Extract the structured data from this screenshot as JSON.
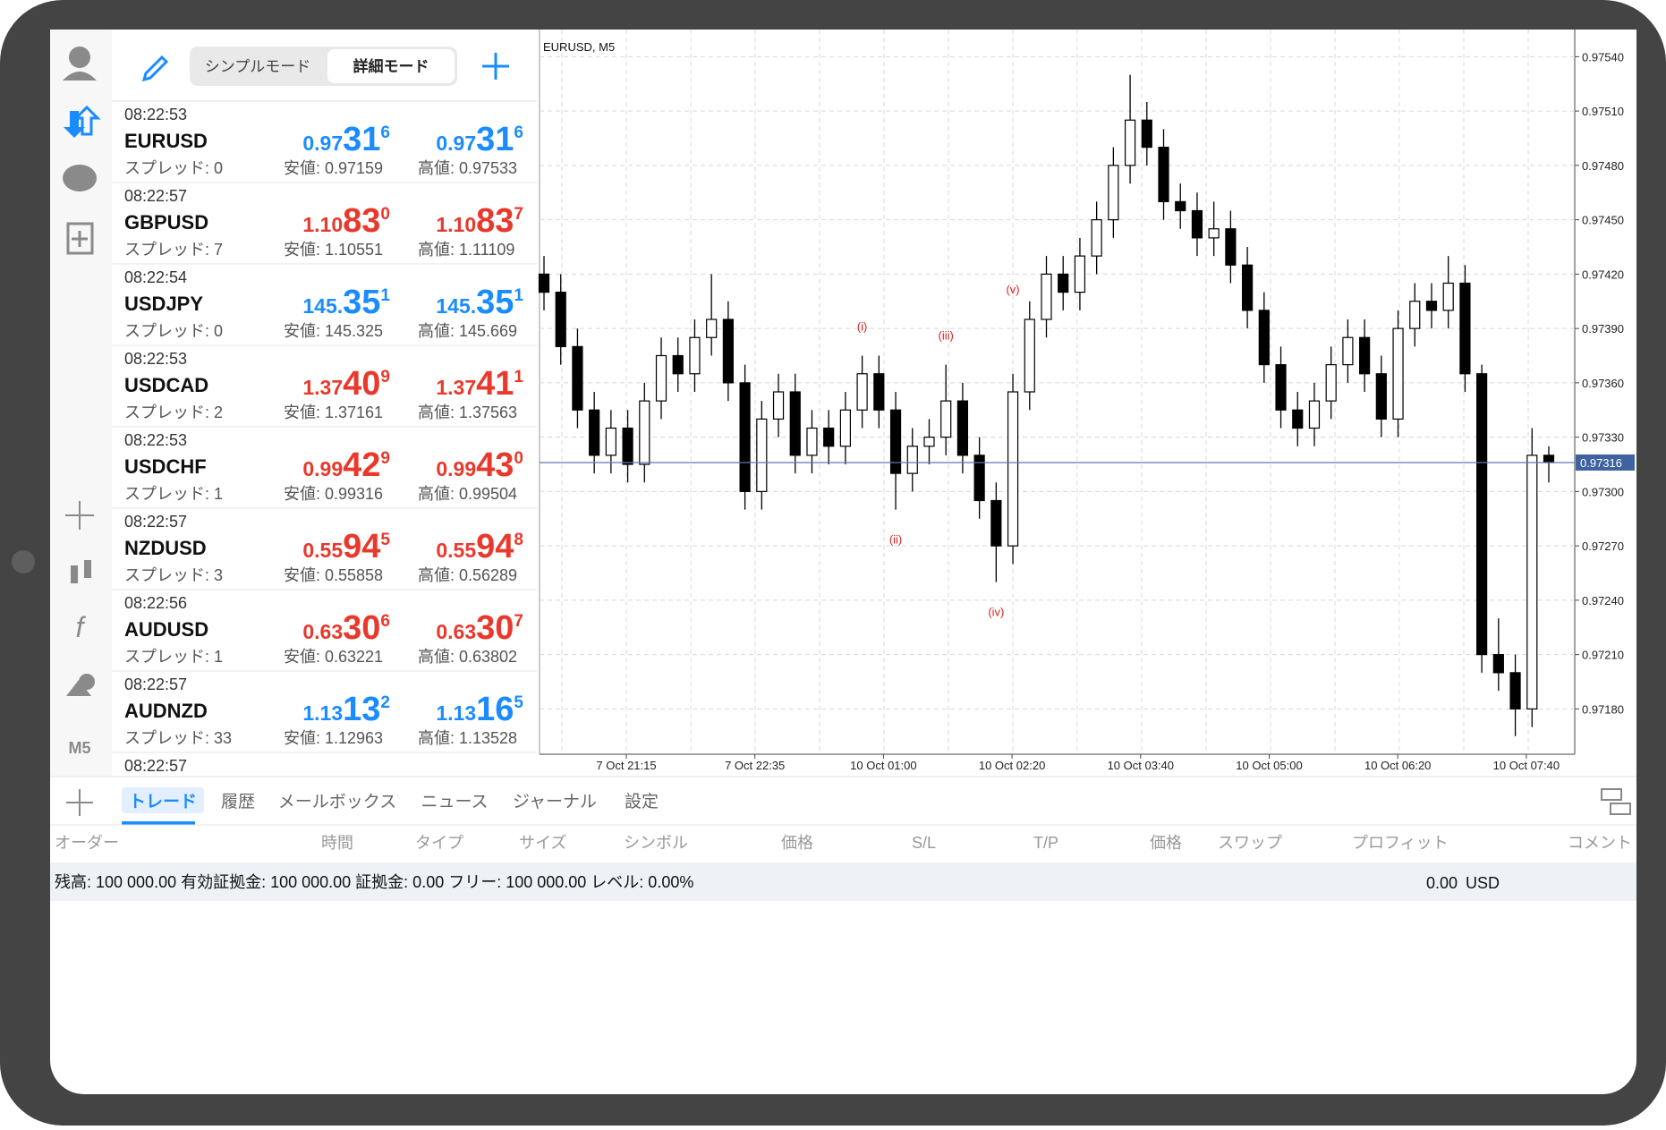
{
  "toolbar": {
    "modes": [
      "シンプルモード",
      "詳細モード"
    ]
  },
  "sidebar": {
    "timeframe": "M5"
  },
  "quotes": [
    {
      "time": "08:22:53",
      "symbol": "EURUSD",
      "spread": "スプレッド: 0",
      "bid": [
        "0.97",
        "31",
        "6"
      ],
      "ask": [
        "0.97",
        "31",
        "6"
      ],
      "low": "安値: 0.97159",
      "high": "高値: 0.97533",
      "color": "#1a8cff"
    },
    {
      "time": "08:22:57",
      "symbol": "GBPUSD",
      "spread": "スプレッド: 7",
      "bid": [
        "1.10",
        "83",
        "0"
      ],
      "ask": [
        "1.10",
        "83",
        "7"
      ],
      "low": "安値: 1.10551",
      "high": "高値: 1.11109",
      "color": "#e8392c"
    },
    {
      "time": "08:22:54",
      "symbol": "USDJPY",
      "spread": "スプレッド: 0",
      "bid": [
        "145.",
        "35",
        "1"
      ],
      "ask": [
        "145.",
        "35",
        "1"
      ],
      "low": "安値: 145.325",
      "high": "高値: 145.669",
      "color": "#1a8cff"
    },
    {
      "time": "08:22:53",
      "symbol": "USDCAD",
      "spread": "スプレッド: 2",
      "bid": [
        "1.37",
        "40",
        "9"
      ],
      "ask": [
        "1.37",
        "41",
        "1"
      ],
      "low": "安値: 1.37161",
      "high": "高値: 1.37563",
      "color": "#e8392c"
    },
    {
      "time": "08:22:53",
      "symbol": "USDCHF",
      "spread": "スプレッド: 1",
      "bid": [
        "0.99",
        "42",
        "9"
      ],
      "ask": [
        "0.99",
        "43",
        "0"
      ],
      "low": "安値: 0.99316",
      "high": "高値: 0.99504",
      "color": "#e8392c"
    },
    {
      "time": "08:22:57",
      "symbol": "NZDUSD",
      "spread": "スプレッド: 3",
      "bid": [
        "0.55",
        "94",
        "5"
      ],
      "ask": [
        "0.55",
        "94",
        "8"
      ],
      "low": "安値: 0.55858",
      "high": "高値: 0.56289",
      "color": "#e8392c"
    },
    {
      "time": "08:22:56",
      "symbol": "AUDUSD",
      "spread": "スプレッド: 1",
      "bid": [
        "0.63",
        "30",
        "6"
      ],
      "ask": [
        "0.63",
        "30",
        "7"
      ],
      "low": "安値: 0.63221",
      "high": "高値: 0.63802",
      "color": "#e8392c"
    },
    {
      "time": "08:22:57",
      "symbol": "AUDNZD",
      "spread": "スプレッド: 33",
      "bid": [
        "1.13",
        "13",
        "2"
      ],
      "ask": [
        "1.13",
        "16",
        "5"
      ],
      "low": "安値: 1.12963",
      "high": "高値: 1.13528",
      "color": "#1a8cff"
    },
    {
      "time": "08:22:57"
    }
  ],
  "chart": {
    "title": "EURUSD, M5",
    "candles": {
      "open": [
        0.9742,
        0.9741,
        0.9738,
        0.97345,
        0.9732,
        0.97335,
        0.97315,
        0.9735,
        0.97375,
        0.97365,
        0.97385,
        0.97395,
        0.9736,
        0.973,
        0.9734,
        0.97355,
        0.9732,
        0.97335,
        0.97325,
        0.97345,
        0.97365,
        0.97345,
        0.9731,
        0.97325,
        0.9733,
        0.9735,
        0.9732,
        0.97295,
        0.9727,
        0.97355,
        0.97395,
        0.9742,
        0.9741,
        0.9743,
        0.9745,
        0.9748,
        0.97505,
        0.9749,
        0.9746,
        0.97455,
        0.9744,
        0.97445,
        0.97425,
        0.974,
        0.9737,
        0.97345,
        0.97335,
        0.9735,
        0.9737,
        0.97385,
        0.97365,
        0.9734,
        0.9739,
        0.97405,
        0.974,
        0.97415,
        0.97365,
        0.9721,
        0.972,
        0.9718,
        0.9732
      ],
      "high": [
        0.9743,
        0.9742,
        0.9739,
        0.97355,
        0.97345,
        0.97345,
        0.9736,
        0.97385,
        0.97385,
        0.97395,
        0.9742,
        0.97405,
        0.9737,
        0.9735,
        0.97365,
        0.97365,
        0.97345,
        0.97345,
        0.97355,
        0.97375,
        0.97375,
        0.97355,
        0.97335,
        0.9734,
        0.9737,
        0.9736,
        0.9733,
        0.97305,
        0.97365,
        0.97405,
        0.9743,
        0.9743,
        0.9744,
        0.9746,
        0.9749,
        0.9753,
        0.97515,
        0.975,
        0.9747,
        0.97465,
        0.9746,
        0.97455,
        0.97435,
        0.9741,
        0.9738,
        0.97355,
        0.9736,
        0.9738,
        0.97395,
        0.97395,
        0.97375,
        0.974,
        0.97415,
        0.97415,
        0.9743,
        0.97425,
        0.9737,
        0.9723,
        0.9721,
        0.97335,
        0.97325
      ],
      "low": [
        0.974,
        0.9737,
        0.97335,
        0.9731,
        0.9731,
        0.97305,
        0.97305,
        0.9734,
        0.97355,
        0.97355,
        0.97375,
        0.9735,
        0.9729,
        0.9729,
        0.9733,
        0.9731,
        0.9731,
        0.97315,
        0.97315,
        0.97335,
        0.97335,
        0.9729,
        0.973,
        0.97315,
        0.9732,
        0.9731,
        0.97285,
        0.9725,
        0.9726,
        0.97345,
        0.97385,
        0.974,
        0.974,
        0.9742,
        0.9744,
        0.9747,
        0.9748,
        0.9745,
        0.97445,
        0.9743,
        0.9743,
        0.97415,
        0.9739,
        0.9736,
        0.97335,
        0.97325,
        0.97325,
        0.9734,
        0.9736,
        0.97355,
        0.9733,
        0.9733,
        0.9738,
        0.9739,
        0.9739,
        0.97355,
        0.972,
        0.9719,
        0.97165,
        0.9717,
        0.97305
      ],
      "close": [
        0.9741,
        0.9738,
        0.97345,
        0.9732,
        0.97335,
        0.97315,
        0.9735,
        0.97375,
        0.97365,
        0.97385,
        0.97395,
        0.9736,
        0.973,
        0.9734,
        0.97355,
        0.9732,
        0.97335,
        0.97325,
        0.97345,
        0.97365,
        0.97345,
        0.9731,
        0.97325,
        0.9733,
        0.9735,
        0.9732,
        0.97295,
        0.9727,
        0.97355,
        0.97395,
        0.9742,
        0.9741,
        0.9743,
        0.9745,
        0.9748,
        0.97505,
        0.9749,
        0.9746,
        0.97455,
        0.9744,
        0.97445,
        0.97425,
        0.974,
        0.9737,
        0.97345,
        0.97335,
        0.9735,
        0.9737,
        0.97385,
        0.97365,
        0.9734,
        0.9739,
        0.97405,
        0.974,
        0.97415,
        0.97365,
        0.9721,
        0.972,
        0.9718,
        0.9732,
        0.97316
      ]
    },
    "ylim": [
      0.97155,
      0.97555
    ],
    "yticks": [
      {
        "value": 0.9754,
        "label": "0.97540"
      },
      {
        "value": 0.9751,
        "label": "0.97510"
      },
      {
        "value": 0.9748,
        "label": "0.97480"
      },
      {
        "value": 0.9745,
        "label": "0.97450"
      },
      {
        "value": 0.9742,
        "label": "0.97420"
      },
      {
        "value": 0.9739,
        "label": "0.97390"
      },
      {
        "value": 0.9736,
        "label": "0.97360"
      },
      {
        "value": 0.9733,
        "label": "0.97330"
      },
      {
        "value": 0.973,
        "label": "0.97300"
      },
      {
        "value": 0.9727,
        "label": "0.97270"
      },
      {
        "value": 0.9724,
        "label": "0.97240"
      },
      {
        "value": 0.9721,
        "label": "0.97210"
      },
      {
        "value": 0.9718,
        "label": "0.97180"
      }
    ],
    "xticks": [
      "7 Oct 21:15",
      "7 Oct 22:35",
      "10 Oct 01:00",
      "10 Oct 02:20",
      "10 Oct 03:40",
      "10 Oct 05:00",
      "10 Oct 06:20",
      "10 Oct 07:40"
    ],
    "current_price": {
      "value": 0.97316,
      "label": "0.97316"
    },
    "waves": [
      "(i)",
      "(ii)",
      "(iii)",
      "(iv)",
      "(v)"
    ]
  },
  "tabs": [
    "トレード",
    "履歴",
    "メールボックス",
    "ニュース",
    "ジャーナル",
    "設定"
  ],
  "columns": [
    "オーダー",
    "時間",
    "タイプ",
    "サイズ",
    "シンボル",
    "価格",
    "S/L",
    "T/P",
    "価格",
    "スワップ",
    "プロフィット",
    "コメント"
  ],
  "account": {
    "summary": "残高: 100 000.00 有効証拠金: 100 000.00 証拠金: 0.00 フリー: 100 000.00 レベル: 0.00%",
    "profit": "0.00",
    "currency": "USD"
  }
}
